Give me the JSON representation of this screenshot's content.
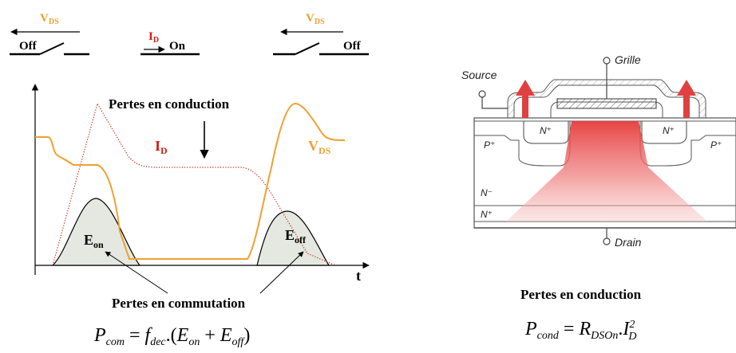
{
  "switches": {
    "left": {
      "state": "Off",
      "voltage_main": "V",
      "voltage_sub": "DS"
    },
    "middle": {
      "state": "On",
      "current_main": "I",
      "current_sub": "D"
    },
    "right": {
      "state": "Off",
      "voltage_main": "V",
      "voltage_sub": "DS"
    }
  },
  "waveform": {
    "conduction_label": "Pertes en conduction",
    "id_main": "I",
    "id_sub": "D",
    "vds_main": "V",
    "vds_sub": "DS",
    "eon_main": "E",
    "eon_sub": "on",
    "eoff_main": "E",
    "eoff_sub": "off",
    "time_axis": "t",
    "commutation_label": "Pertes en commutation",
    "formula": {
      "lhs": "P",
      "lhs_sub": "com",
      "f": "f",
      "f_sub": "dec",
      "mid": ".(",
      "e1": "E",
      "e1_sub": "on",
      "plus": "+",
      "e2": "E",
      "e2_sub": "off",
      "close": ")"
    }
  },
  "mosfet": {
    "source": "Source",
    "grille": "Grille",
    "drain": "Drain",
    "p_left": "P⁺",
    "p_right": "P⁺",
    "n_left": "N⁺",
    "n_right": "N⁺",
    "n_minus": "N⁻",
    "n_plus": "N⁺",
    "conduction_label": "Pertes en conduction",
    "formula": {
      "lhs": "P",
      "lhs_sub": "cond",
      "r": "R",
      "r_sub": "DSOn",
      "dot": ".",
      "i": "I",
      "i_sub": "D",
      "i_sup": "2"
    }
  },
  "colors": {
    "orange": "#f0a030",
    "red": "#d02010",
    "hump_fill": "#e4e8e0",
    "heat": "#e84040"
  }
}
